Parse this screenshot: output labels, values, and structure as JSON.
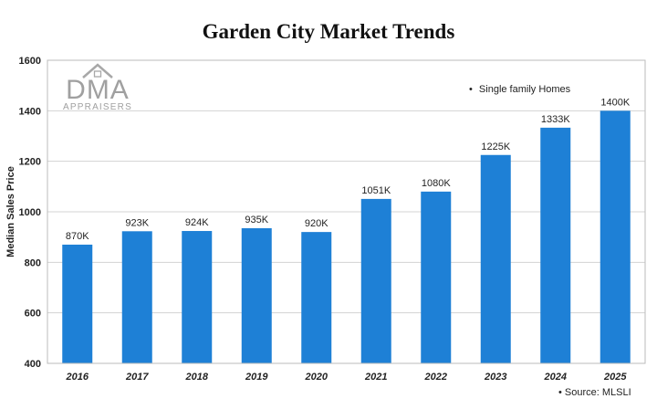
{
  "chart_data": {
    "type": "bar",
    "title": "Garden City Market Trends",
    "ylabel": "Median Sales Price",
    "xlabel": "",
    "categories": [
      "2016",
      "2017",
      "2018",
      "2019",
      "2020",
      "2021",
      "2022",
      "2023",
      "2024",
      "2025"
    ],
    "series": [
      {
        "name": "Single family Homes",
        "values": [
          870,
          923,
          924,
          935,
          920,
          1051,
          1080,
          1225,
          1333,
          1400
        ],
        "labels": [
          "870K",
          "923K",
          "924K",
          "935K",
          "920K",
          "1051K",
          "1080K",
          "1225K",
          "1333K",
          "1400K"
        ]
      }
    ],
    "ylim": [
      400,
      1600
    ],
    "yticks": [
      400,
      600,
      800,
      1000,
      1200,
      1400,
      1600
    ],
    "grid": true,
    "legend_position": "top-right",
    "bar_color": "#1e80d6",
    "legend_marker": "•",
    "source": "• Source: MLSLI"
  },
  "logo": {
    "name": "DMA",
    "subtitle": "APPRAISERS",
    "color": "#a0a0a0"
  }
}
